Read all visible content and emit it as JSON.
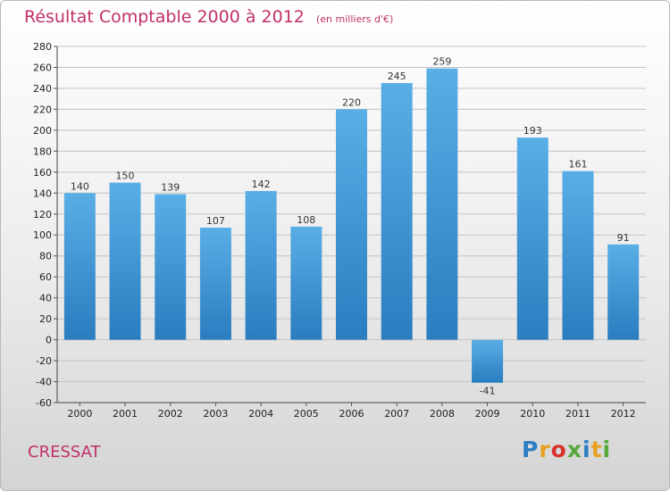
{
  "chart_data": {
    "type": "bar",
    "title": "Résultat Comptable 2000 à 2012",
    "subtitle": "(en milliers d'€)",
    "categories": [
      "2000",
      "2001",
      "2002",
      "2003",
      "2004",
      "2005",
      "2006",
      "2007",
      "2008",
      "2009",
      "2010",
      "2011",
      "2012"
    ],
    "values": [
      140,
      150,
      139,
      107,
      142,
      108,
      220,
      245,
      259,
      -41,
      193,
      161,
      91
    ],
    "ylim": [
      -60,
      280
    ],
    "yticks": [
      -60,
      -40,
      -20,
      0,
      20,
      40,
      60,
      80,
      100,
      120,
      140,
      160,
      180,
      200,
      220,
      240,
      260,
      280
    ],
    "xlabel": "",
    "ylabel": "",
    "grid": true,
    "bar_color_top": "#5aaee6",
    "bar_color_bottom": "#2a7dbf"
  },
  "commune": "CRESSAT",
  "logo": {
    "letters": [
      "P",
      "r",
      "o",
      "x",
      "i",
      "t",
      "i"
    ],
    "colors": [
      "#2c7fc4",
      "#e8a020",
      "#d8322e",
      "#55a83a",
      "#2c7fc4",
      "#e8a020",
      "#55a83a"
    ]
  }
}
